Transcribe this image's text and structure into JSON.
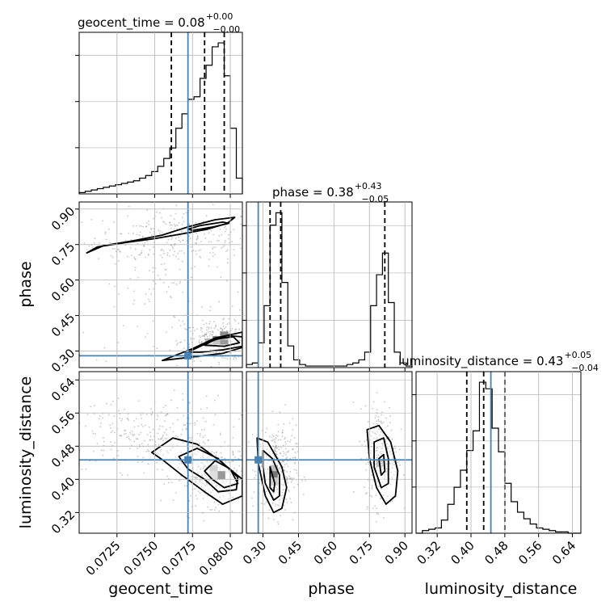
{
  "chart_data": {
    "type": "corner",
    "colors": {
      "truth": "#4682b4",
      "hist": "#000000",
      "grid": "#c0c0c0",
      "points": "#808080"
    },
    "parameters": [
      "geocent_time",
      "phase",
      "luminosity_distance"
    ],
    "truth": {
      "geocent_time": 0.0772,
      "phase": 0.28,
      "luminosity_distance": 0.447
    },
    "ranges": {
      "geocent_time": [
        0.07,
        0.0808
      ],
      "phase": [
        0.23,
        0.93
      ],
      "luminosity_distance": [
        0.27,
        0.66
      ]
    },
    "ticks": {
      "geocent_time": {
        "values": [
          0.0725,
          0.075,
          0.0775,
          0.08
        ],
        "labels": [
          "0.0725",
          "0.0750",
          "0.0775",
          "0.0800"
        ]
      },
      "phase": {
        "values": [
          0.3,
          0.45,
          0.6,
          0.75,
          0.9
        ],
        "labels": [
          "0.30",
          "0.45",
          "0.60",
          "0.75",
          "0.90"
        ]
      },
      "luminosity_distance": {
        "values": [
          0.32,
          0.4,
          0.48,
          0.56,
          0.64
        ],
        "labels": [
          "0.32",
          "0.40",
          "0.48",
          "0.56",
          "0.64"
        ]
      }
    },
    "titles": {
      "geocent_time": {
        "name": "geocent_time",
        "value": "0.08",
        "plus": "+0.00",
        "minus": "−0.00"
      },
      "phase": {
        "name": "phase",
        "value": "0.38",
        "plus": "+0.43",
        "minus": "−0.05"
      },
      "luminosity_distance": {
        "name": "luminosity_distance",
        "value": "0.43",
        "plus": "+0.05",
        "minus": "−0.04"
      }
    },
    "marginals": {
      "geocent_time": {
        "edges": [
          0.07,
          0.0704,
          0.0708,
          0.0712,
          0.0716,
          0.072,
          0.0724,
          0.0728,
          0.0732,
          0.0736,
          0.074,
          0.0744,
          0.0748,
          0.0752,
          0.0756,
          0.076,
          0.0764,
          0.0768,
          0.0772,
          0.0776,
          0.078,
          0.0784,
          0.0788,
          0.0792,
          0.0796,
          0.08,
          0.0804,
          0.0808
        ],
        "counts": [
          1,
          2,
          3,
          4,
          5,
          6,
          7,
          8,
          9,
          10,
          12,
          14,
          17,
          21,
          27,
          35,
          50,
          61,
          72,
          74,
          88,
          98,
          112,
          115,
          90,
          50,
          12
        ],
        "quantiles": [
          0.0761,
          0.0783,
          0.0796
        ]
      },
      "phase": {
        "edges": [
          0.23,
          0.255,
          0.28,
          0.305,
          0.33,
          0.355,
          0.38,
          0.405,
          0.43,
          0.455,
          0.48,
          0.505,
          0.53,
          0.555,
          0.58,
          0.605,
          0.63,
          0.655,
          0.68,
          0.705,
          0.73,
          0.755,
          0.78,
          0.805,
          0.83,
          0.855,
          0.88,
          0.905,
          0.93
        ],
        "counts": [
          2,
          3,
          16,
          40,
          92,
          100,
          55,
          14,
          5,
          2,
          1,
          1,
          1,
          1,
          1,
          1,
          1,
          2,
          3,
          5,
          10,
          40,
          60,
          74,
          42,
          10,
          3,
          1
        ],
        "quantiles": [
          0.33,
          0.375,
          0.815
        ]
      },
      "luminosity_distance": {
        "edges": [
          0.27,
          0.285,
          0.3,
          0.315,
          0.33,
          0.345,
          0.36,
          0.375,
          0.39,
          0.405,
          0.42,
          0.435,
          0.45,
          0.465,
          0.48,
          0.495,
          0.51,
          0.525,
          0.54,
          0.555,
          0.57,
          0.585,
          0.6,
          0.615,
          0.63,
          0.645,
          0.66
        ],
        "counts": [
          0,
          2,
          3,
          4,
          10,
          22,
          35,
          48,
          63,
          78,
          115,
          110,
          80,
          62,
          38,
          24,
          16,
          11,
          7,
          4,
          3,
          2,
          1,
          1,
          0,
          0
        ],
        "quantiles": [
          0.39,
          0.43,
          0.48
        ]
      }
    },
    "pairs": [
      {
        "x": "geocent_time",
        "y": "phase",
        "clouds": [
          {
            "cx": 0.0766,
            "cy": 0.78,
            "sx": 0.0028,
            "sy": 0.06,
            "n": 260
          },
          {
            "cx": 0.0792,
            "cy": 0.34,
            "sx": 0.0012,
            "sy": 0.04,
            "n": 300
          },
          {
            "cx": 0.0754,
            "cy": 0.55,
            "sx": 0.003,
            "sy": 0.18,
            "n": 120
          }
        ],
        "contours": [
          [
            [
              0.0705,
              0.715
            ],
            [
              0.0716,
              0.745
            ],
            [
              0.0735,
              0.765
            ],
            [
              0.0755,
              0.79
            ],
            [
              0.0772,
              0.825
            ],
            [
              0.079,
              0.855
            ],
            [
              0.0803,
              0.865
            ],
            [
              0.0798,
              0.84
            ],
            [
              0.0785,
              0.815
            ],
            [
              0.0768,
              0.795
            ],
            [
              0.075,
              0.775
            ],
            [
              0.0732,
              0.76
            ],
            [
              0.0712,
              0.74
            ]
          ],
          [
            [
              0.0772,
              0.815
            ],
            [
              0.078,
              0.83
            ],
            [
              0.0795,
              0.845
            ],
            [
              0.0799,
              0.84
            ],
            [
              0.0789,
              0.825
            ],
            [
              0.0775,
              0.81
            ]
          ],
          [
            [
              0.0755,
              0.26
            ],
            [
              0.0775,
              0.31
            ],
            [
              0.079,
              0.355
            ],
            [
              0.0808,
              0.38
            ],
            [
              0.0808,
              0.315
            ],
            [
              0.0795,
              0.29
            ],
            [
              0.0775,
              0.275
            ]
          ],
          [
            [
              0.0772,
              0.295
            ],
            [
              0.0785,
              0.335
            ],
            [
              0.0798,
              0.365
            ],
            [
              0.0808,
              0.36
            ],
            [
              0.0808,
              0.32
            ],
            [
              0.0795,
              0.305
            ],
            [
              0.078,
              0.295
            ]
          ],
          [
            [
              0.0783,
              0.325
            ],
            [
              0.079,
              0.35
            ],
            [
              0.0802,
              0.36
            ],
            [
              0.0806,
              0.335
            ],
            [
              0.0796,
              0.32
            ]
          ]
        ],
        "cells": [
          {
            "x": 0.0791,
            "y": 0.345,
            "v": 0.55
          },
          {
            "x": 0.0796,
            "y": 0.345,
            "v": 0.95
          },
          {
            "x": 0.0796,
            "y": 0.365,
            "v": 0.45
          },
          {
            "x": 0.0786,
            "y": 0.335,
            "v": 0.3
          }
        ]
      },
      {
        "x": "geocent_time",
        "y": "luminosity_distance",
        "clouds": [
          {
            "cx": 0.0745,
            "cy": 0.51,
            "sx": 0.0028,
            "sy": 0.045,
            "n": 280
          },
          {
            "cx": 0.0788,
            "cy": 0.41,
            "sx": 0.0012,
            "sy": 0.035,
            "n": 320
          }
        ],
        "contours": [
          [
            [
              0.0748,
              0.465
            ],
            [
              0.0762,
              0.5
            ],
            [
              0.0778,
              0.485
            ],
            [
              0.0793,
              0.445
            ],
            [
              0.0808,
              0.4
            ],
            [
              0.0808,
              0.36
            ],
            [
              0.0795,
              0.34
            ],
            [
              0.0783,
              0.37
            ],
            [
              0.0768,
              0.41
            ],
            [
              0.0756,
              0.445
            ]
          ],
          [
            [
              0.0766,
              0.455
            ],
            [
              0.0778,
              0.475
            ],
            [
              0.0792,
              0.45
            ],
            [
              0.0805,
              0.405
            ],
            [
              0.0804,
              0.375
            ],
            [
              0.0792,
              0.37
            ],
            [
              0.0783,
              0.4
            ],
            [
              0.0772,
              0.425
            ]
          ],
          [
            [
              0.0783,
              0.42
            ],
            [
              0.079,
              0.445
            ],
            [
              0.08,
              0.425
            ],
            [
              0.0805,
              0.39
            ],
            [
              0.0796,
              0.38
            ],
            [
              0.0788,
              0.4
            ]
          ]
        ],
        "cells": [
          {
            "x": 0.0789,
            "y": 0.425,
            "v": 0.4
          },
          {
            "x": 0.0794,
            "y": 0.41,
            "v": 0.95
          },
          {
            "x": 0.0789,
            "y": 0.41,
            "v": 0.3
          }
        ]
      },
      {
        "x": "phase",
        "y": "luminosity_distance",
        "clouds": [
          {
            "cx": 0.36,
            "cy": 0.42,
            "sx": 0.04,
            "sy": 0.055,
            "n": 320
          },
          {
            "cx": 0.8,
            "cy": 0.46,
            "sx": 0.035,
            "sy": 0.06,
            "n": 300
          }
        ],
        "contours": [
          [
            [
              0.275,
              0.5
            ],
            [
              0.32,
              0.49
            ],
            [
              0.38,
              0.43
            ],
            [
              0.4,
              0.38
            ],
            [
              0.38,
              0.33
            ],
            [
              0.345,
              0.32
            ],
            [
              0.31,
              0.36
            ],
            [
              0.28,
              0.44
            ]
          ],
          [
            [
              0.3,
              0.47
            ],
            [
              0.34,
              0.45
            ],
            [
              0.37,
              0.41
            ],
            [
              0.37,
              0.36
            ],
            [
              0.345,
              0.35
            ],
            [
              0.31,
              0.39
            ],
            [
              0.3,
              0.43
            ]
          ],
          [
            [
              0.33,
              0.43
            ],
            [
              0.35,
              0.39
            ],
            [
              0.345,
              0.37
            ],
            [
              0.33,
              0.38
            ]
          ],
          [
            [
              0.74,
              0.52
            ],
            [
              0.79,
              0.53
            ],
            [
              0.84,
              0.49
            ],
            [
              0.87,
              0.42
            ],
            [
              0.86,
              0.36
            ],
            [
              0.82,
              0.34
            ],
            [
              0.78,
              0.38
            ],
            [
              0.75,
              0.45
            ]
          ],
          [
            [
              0.77,
              0.49
            ],
            [
              0.81,
              0.5
            ],
            [
              0.83,
              0.45
            ],
            [
              0.83,
              0.39
            ],
            [
              0.8,
              0.38
            ],
            [
              0.77,
              0.43
            ]
          ],
          [
            [
              0.79,
              0.45
            ],
            [
              0.81,
              0.46
            ],
            [
              0.815,
              0.42
            ],
            [
              0.8,
              0.41
            ]
          ]
        ],
        "cells": [
          {
            "x": 0.345,
            "y": 0.425,
            "v": 0.45
          },
          {
            "x": 0.345,
            "y": 0.41,
            "v": 0.95
          },
          {
            "x": 0.345,
            "y": 0.395,
            "v": 0.4
          },
          {
            "x": 0.795,
            "y": 0.44,
            "v": 0.4
          }
        ]
      }
    ],
    "grid": true
  }
}
